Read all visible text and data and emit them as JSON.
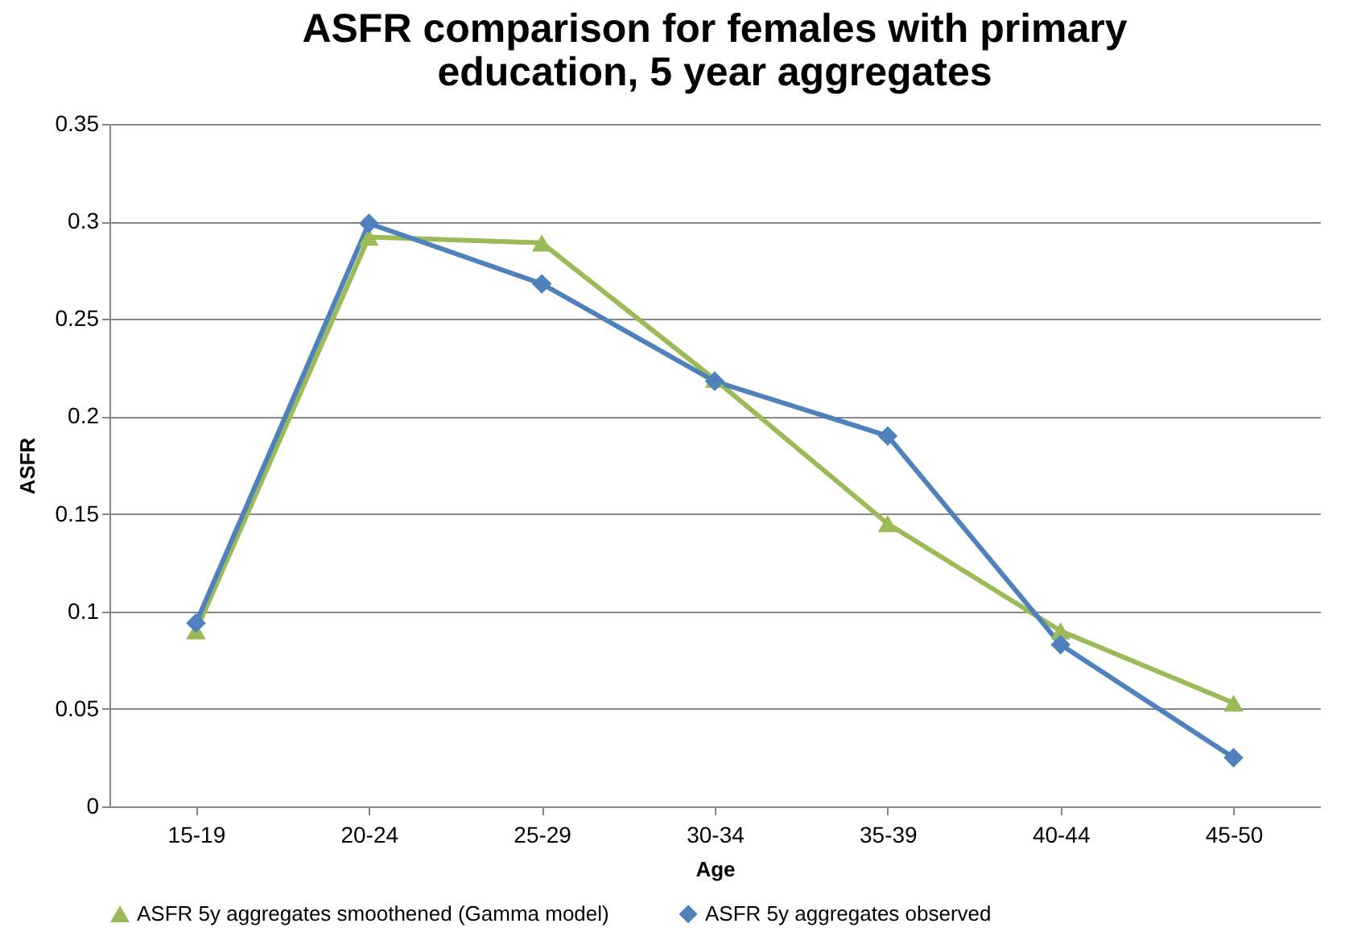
{
  "chart_data": {
    "type": "line",
    "title": "ASFR comparison for females with primary\neducation, 5 year aggregates",
    "xlabel": "Age",
    "ylabel": "ASFR",
    "categories": [
      "15-19",
      "20-24",
      "25-29",
      "30-34",
      "35-39",
      "40-44",
      "45-50"
    ],
    "series": [
      {
        "name": "ASFR 5y aggregates smoothened (Gamma model)",
        "color": "#9bbb59",
        "marker": "triangle",
        "values": [
          0.09,
          0.292,
          0.289,
          0.219,
          0.145,
          0.09,
          0.053
        ]
      },
      {
        "name": "ASFR 5y aggregates observed",
        "color": "#4f81bd",
        "marker": "diamond",
        "values": [
          0.094,
          0.299,
          0.268,
          0.218,
          0.19,
          0.083,
          0.025
        ]
      }
    ],
    "ylim": [
      0,
      0.35
    ],
    "yticks": [
      0,
      0.05,
      0.1,
      0.15,
      0.2,
      0.25,
      0.3,
      0.35
    ],
    "grid": "y",
    "legend": "bottom",
    "line_style": "solid"
  }
}
